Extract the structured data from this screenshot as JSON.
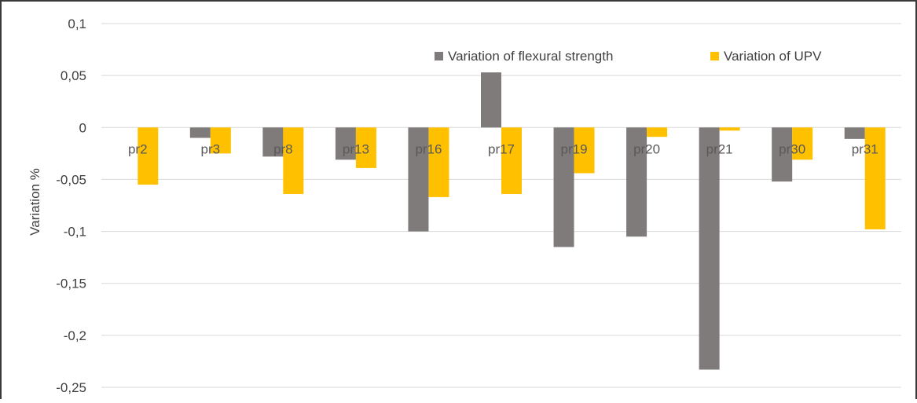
{
  "chart_data": {
    "type": "bar",
    "title": "",
    "xlabel": "",
    "ylabel": "Variation %",
    "ylim": [
      -0.25,
      0.1
    ],
    "yticks": [
      0.1,
      0.05,
      0,
      -0.05,
      -0.1,
      -0.15,
      -0.2,
      -0.25
    ],
    "ytick_labels": [
      "0,1",
      "0,05",
      "0",
      "-0,05",
      "-0,1",
      "-0,15",
      "-0,2",
      "-0,25"
    ],
    "grid": true,
    "legend_position": "top-right",
    "categories": [
      "pr2",
      "pr3",
      "pr8",
      "pr13",
      "pr16",
      "pr17",
      "pr19",
      "pr20",
      "pr21",
      "pr30",
      "pr31"
    ],
    "series": [
      {
        "name": "Variation of flexural strength",
        "color": "#7f7b7b",
        "values": [
          0.0,
          -0.01,
          -0.028,
          -0.031,
          -0.1,
          0.053,
          -0.115,
          -0.105,
          -0.233,
          -0.052,
          -0.011
        ]
      },
      {
        "name": "Variation of UPV",
        "color": "#ffc000",
        "values": [
          -0.055,
          -0.025,
          -0.064,
          -0.039,
          -0.067,
          -0.064,
          -0.044,
          -0.009,
          -0.003,
          -0.031,
          -0.098
        ]
      }
    ]
  }
}
